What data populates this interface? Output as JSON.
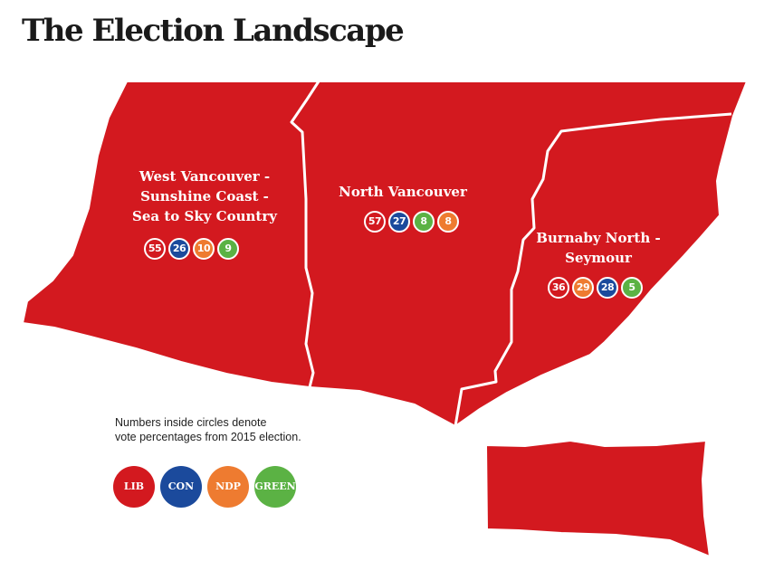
{
  "title": "The Election Landscape",
  "colors": {
    "region": "#d3191f",
    "lib": "#d3191f",
    "con": "#1b4a9c",
    "ndp": "#ee7b30",
    "green": "#5bb244"
  },
  "districts": [
    {
      "name_lines": [
        "West Vancouver -",
        "Sunshine Coast -",
        "Sea to Sky Country"
      ],
      "results": [
        {
          "party": "lib",
          "value": "55"
        },
        {
          "party": "con",
          "value": "26"
        },
        {
          "party": "ndp",
          "value": "10"
        },
        {
          "party": "green",
          "value": "9"
        }
      ]
    },
    {
      "name_lines": [
        "North Vancouver"
      ],
      "results": [
        {
          "party": "lib",
          "value": "57"
        },
        {
          "party": "con",
          "value": "27"
        },
        {
          "party": "green",
          "value": "8"
        },
        {
          "party": "ndp",
          "value": "8"
        }
      ]
    },
    {
      "name_lines": [
        "Burnaby North -",
        "Seymour"
      ],
      "results": [
        {
          "party": "lib",
          "value": "36"
        },
        {
          "party": "ndp",
          "value": "29"
        },
        {
          "party": "con",
          "value": "28"
        },
        {
          "party": "green",
          "value": "5"
        }
      ]
    }
  ],
  "note_lines": [
    "Numbers inside circles denote",
    "vote percentages from 2015 election."
  ],
  "legend": [
    {
      "party": "lib",
      "label": "LIB"
    },
    {
      "party": "con",
      "label": "CON"
    },
    {
      "party": "ndp",
      "label": "NDP"
    },
    {
      "party": "green",
      "label": "GREEN"
    }
  ]
}
